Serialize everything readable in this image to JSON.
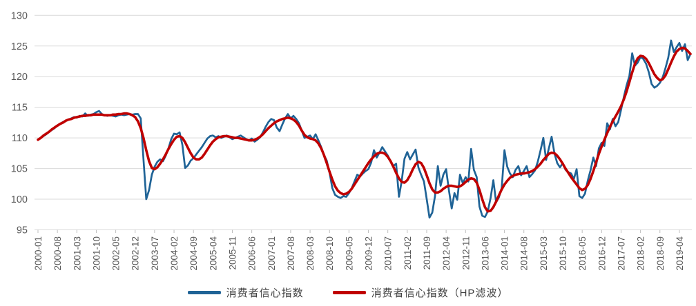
{
  "chart_data": {
    "type": "line",
    "title": "",
    "xlabel": "",
    "ylabel": "",
    "start_month": "2000-01",
    "end_month": "2019-08",
    "x_tick_labels": [
      "2000-01",
      "2000-08",
      "2001-03",
      "2001-10",
      "2002-05",
      "2002-12",
      "2003-07",
      "2004-02",
      "2004-09",
      "2005-04",
      "2005-11",
      "2006-06",
      "2007-01",
      "2007-08",
      "2008-03",
      "2008-10",
      "2009-05",
      "2009-12",
      "2010-07",
      "2011-02",
      "2011-09",
      "2012-04",
      "2012-11",
      "2013-06",
      "2014-01",
      "2014-08",
      "2015-03",
      "2015-10",
      "2016-05",
      "2016-12",
      "2017-07",
      "2018-02",
      "2018-09",
      "2019-04"
    ],
    "x_tick_interval_months": 7,
    "y_ticks": [
      95,
      100,
      105,
      110,
      115,
      120,
      125,
      130
    ],
    "ylim": [
      95,
      130
    ],
    "grid": "horizontal",
    "legend_position": "bottom",
    "axis_text_color": "#595959",
    "gridline_color": "#d9d9d9",
    "tick_color": "#bfbfbf",
    "series": [
      {
        "name": "消费者信心指数",
        "color": "#1f6396",
        "stroke_width": 2.7,
        "values": [
          109.7,
          110.0,
          110.3,
          110.6,
          111.0,
          111.3,
          111.6,
          112.0,
          112.3,
          112.6,
          112.8,
          113.0,
          113.2,
          113.4,
          113.3,
          113.6,
          113.5,
          114.0,
          113.6,
          113.8,
          113.9,
          114.2,
          114.4,
          113.9,
          113.7,
          113.6,
          113.7,
          113.6,
          113.5,
          113.7,
          113.8,
          113.7,
          113.8,
          113.9,
          113.8,
          113.9,
          113.9,
          113.2,
          106.5,
          100.0,
          101.5,
          104.0,
          105.3,
          106.1,
          106.5,
          106.2,
          107.1,
          108.3,
          109.8,
          110.7,
          110.6,
          110.9,
          108.9,
          105.1,
          105.5,
          106.3,
          106.7,
          107.3,
          107.9,
          108.5,
          109.2,
          109.9,
          110.3,
          110.4,
          110.1,
          110.3,
          110.0,
          110.2,
          110.4,
          110.1,
          109.8,
          110.0,
          110.2,
          110.4,
          110.1,
          109.8,
          109.6,
          109.9,
          109.4,
          109.7,
          110.1,
          110.9,
          111.8,
          112.6,
          113.1,
          112.9,
          111.7,
          111.1,
          112.2,
          113.2,
          113.9,
          113.2,
          113.6,
          113.1,
          112.4,
          111.2,
          110.0,
          110.2,
          110.4,
          109.8,
          110.6,
          109.6,
          108.5,
          107.2,
          106.3,
          104.4,
          101.8,
          100.7,
          100.4,
          100.2,
          100.5,
          100.4,
          101.0,
          101.8,
          102.9,
          104.0,
          103.7,
          104.2,
          104.6,
          104.9,
          106.0,
          108.0,
          106.8,
          107.6,
          108.5,
          107.8,
          107.1,
          106.2,
          105.4,
          105.8,
          100.4,
          103.0,
          106.6,
          107.7,
          106.5,
          107.3,
          108.1,
          105.2,
          104.0,
          102.9,
          100.0,
          97.0,
          97.8,
          100.5,
          105.4,
          102.2,
          104.0,
          104.9,
          101.5,
          98.5,
          101.0,
          99.9,
          104.0,
          102.6,
          103.6,
          102.9,
          108.2,
          104.8,
          103.6,
          98.8,
          97.3,
          97.1,
          98.0,
          100.2,
          103.1,
          99.5,
          100.3,
          101.8,
          108.0,
          105.3,
          104.2,
          103.6,
          104.8,
          105.4,
          103.9,
          104.6,
          105.4,
          103.6,
          104.1,
          104.7,
          106.1,
          108.0,
          110.0,
          106.4,
          108.3,
          110.2,
          107.5,
          105.9,
          105.2,
          105.9,
          104.8,
          104.4,
          104.2,
          103.3,
          104.9,
          100.5,
          100.2,
          100.9,
          103.0,
          104.7,
          106.8,
          105.4,
          108.3,
          109.2,
          108.7,
          112.4,
          111.4,
          113.1,
          111.9,
          112.6,
          114.6,
          116.7,
          118.6,
          120.1,
          123.8,
          121.8,
          122.3,
          123.2,
          122.9,
          122.1,
          120.7,
          118.8,
          118.2,
          118.5,
          119.0,
          119.9,
          121.4,
          123.1,
          125.9,
          124.0,
          124.8,
          125.5,
          124.2,
          125.3,
          122.7,
          123.7
        ]
      },
      {
        "name": "消费者信心指数（HP滤波）",
        "color": "#c00000",
        "stroke_width": 3.6,
        "values": [
          109.7,
          110.0,
          110.4,
          110.7,
          111.0,
          111.4,
          111.7,
          112.0,
          112.3,
          112.5,
          112.8,
          113.0,
          113.1,
          113.3,
          113.4,
          113.5,
          113.6,
          113.6,
          113.7,
          113.7,
          113.8,
          113.8,
          113.8,
          113.8,
          113.7,
          113.7,
          113.7,
          113.8,
          113.8,
          113.9,
          113.9,
          114.0,
          114.0,
          113.9,
          113.7,
          113.4,
          112.7,
          111.6,
          110.0,
          108.0,
          106.2,
          105.1,
          104.9,
          105.2,
          105.8,
          106.5,
          107.3,
          108.2,
          109.0,
          109.7,
          110.2,
          110.3,
          110.0,
          109.3,
          108.4,
          107.5,
          106.8,
          106.5,
          106.5,
          106.8,
          107.4,
          108.1,
          108.8,
          109.4,
          109.8,
          110.1,
          110.2,
          110.3,
          110.3,
          110.2,
          110.1,
          110.0,
          110.0,
          109.9,
          109.8,
          109.7,
          109.6,
          109.6,
          109.7,
          109.9,
          110.2,
          110.6,
          111.1,
          111.6,
          112.0,
          112.4,
          112.7,
          112.9,
          113.1,
          113.2,
          113.3,
          113.2,
          113.0,
          112.6,
          112.0,
          111.2,
          110.5,
          110.1,
          109.9,
          109.8,
          109.6,
          109.1,
          108.3,
          107.2,
          105.9,
          104.5,
          103.2,
          102.1,
          101.4,
          101.0,
          100.8,
          100.9,
          101.2,
          101.7,
          102.4,
          103.1,
          103.8,
          104.5,
          105.2,
          105.9,
          106.5,
          107.0,
          107.4,
          107.6,
          107.6,
          107.4,
          106.9,
          106.2,
          105.3,
          104.3,
          103.4,
          102.8,
          102.7,
          103.1,
          103.9,
          104.9,
          105.7,
          106.1,
          105.9,
          105.1,
          103.9,
          102.6,
          101.6,
          101.1,
          101.1,
          101.3,
          101.7,
          102.0,
          102.2,
          102.2,
          102.1,
          102.0,
          102.1,
          102.4,
          102.8,
          103.2,
          103.4,
          103.3,
          102.7,
          101.5,
          100.0,
          98.7,
          98.0,
          98.1,
          98.7,
          99.6,
          100.6,
          101.6,
          102.4,
          103.0,
          103.5,
          103.8,
          104.0,
          104.1,
          104.2,
          104.2,
          104.3,
          104.4,
          104.6,
          104.9,
          105.3,
          105.8,
          106.4,
          106.9,
          107.4,
          107.6,
          107.5,
          107.1,
          106.5,
          105.8,
          105.0,
          104.3,
          103.6,
          103.0,
          102.4,
          101.8,
          101.5,
          101.7,
          102.3,
          103.3,
          104.6,
          106.0,
          107.4,
          108.6,
          109.7,
          110.8,
          111.8,
          112.7,
          113.5,
          114.3,
          115.2,
          116.3,
          117.6,
          119.1,
          120.7,
          122.1,
          123.0,
          123.4,
          123.3,
          122.9,
          122.2,
          121.3,
          120.4,
          119.8,
          119.4,
          119.6,
          120.2,
          121.2,
          122.3,
          123.3,
          124.1,
          124.5,
          124.7,
          124.6,
          124.2,
          123.7
        ]
      }
    ]
  },
  "legend": {
    "raw_label": "消费者信心指数",
    "hp_label": "消费者信心指数（HP滤波）"
  }
}
